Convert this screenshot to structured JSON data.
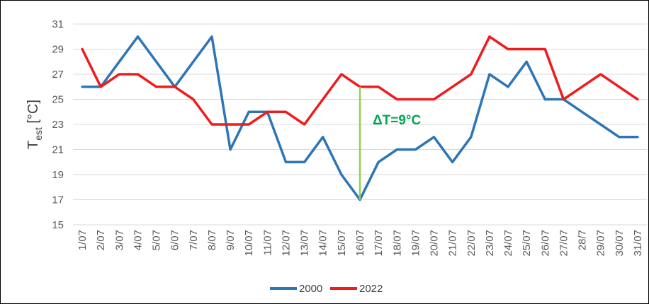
{
  "chart_data": {
    "type": "line",
    "ylabel_main": "T",
    "ylabel_sub": "est",
    "ylabel_unit": " [°C]",
    "ylim": [
      15,
      31
    ],
    "yticks": [
      "15",
      "17",
      "19",
      "21",
      "23",
      "25",
      "27",
      "29",
      "31"
    ],
    "categories": [
      "1/07",
      "2/07",
      "3/07",
      "4/07",
      "5/07",
      "6/07",
      "7/07",
      "8/07",
      "9/07",
      "10/07",
      "11/07",
      "12/07",
      "13/07",
      "14/07",
      "15/07",
      "16/07",
      "17/07",
      "18/07",
      "19/07",
      "20/07",
      "21/07",
      "22/07",
      "23/07",
      "24/07",
      "25/07",
      "26/07",
      "27/07",
      "28/7",
      "29/07",
      "30/07",
      "31/07"
    ],
    "grid": true,
    "legend_position": "bottom",
    "series": [
      {
        "name": "2000",
        "color": "#2e75b6",
        "values": [
          26,
          26,
          28,
          30,
          28,
          26,
          28,
          30,
          21,
          24,
          24,
          20,
          20,
          22,
          19,
          17,
          20,
          21,
          21,
          22,
          20,
          22,
          27,
          26,
          28,
          25,
          25,
          24,
          23,
          22,
          22
        ]
      },
      {
        "name": "2022",
        "color": "#ee1c1c",
        "values": [
          29,
          26,
          27,
          27,
          26,
          26,
          25,
          23,
          23,
          23,
          24,
          24,
          23,
          25,
          27,
          26,
          26,
          25,
          25,
          25,
          26,
          27,
          30,
          29,
          29,
          29,
          25,
          26,
          27,
          26,
          25
        ]
      }
    ],
    "annotation": {
      "text": "ΔT=9°C",
      "color": "#00a651",
      "line_color": "#92d050",
      "category": "16/07",
      "from": 17,
      "to": 26
    }
  }
}
